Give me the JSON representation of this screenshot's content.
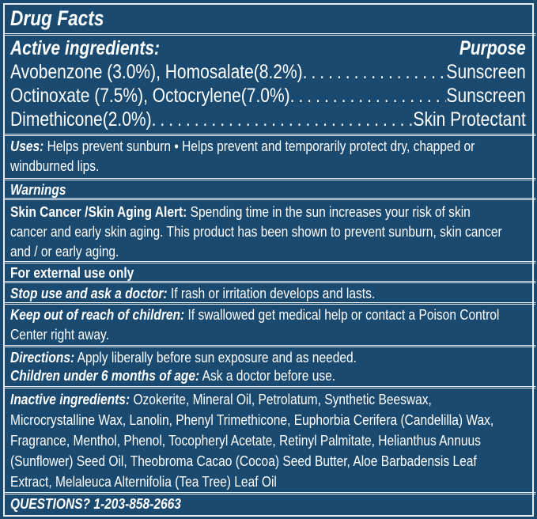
{
  "title": "Drug Facts",
  "active": {
    "heading": "Active ingredients:",
    "purpose_heading": "Purpose",
    "rows": [
      {
        "ingredient": "Avobenzone (3.0%), Homosalate(8.2%)",
        "purpose": "Sunscreen"
      },
      {
        "ingredient": "Octinoxate (7.5%), Octocrylene(7.0%)",
        "purpose": "Sunscreen"
      },
      {
        "ingredient": "Dimethicone(2.0%)",
        "purpose": "Skin Protectant"
      }
    ]
  },
  "uses": {
    "label": "Uses:",
    "lines": [
      " Helps prevent sunburn • Helps prevent and temporarily protect dry, chapped or",
      "windburned lips."
    ]
  },
  "warnings": {
    "heading": "Warnings",
    "skin_label": "Skin Cancer /Skin Aging Alert:",
    "skin_lines": [
      " Spending time in the sun increases your risk of skin",
      "cancer and early skin aging. This product has been shown to prevent sunburn, skin cancer",
      "and / or early aging."
    ],
    "external": "For external use only",
    "stop_label": "Stop use and ask a doctor:",
    "stop_text": " If rash or irritation develops and lasts.",
    "keep_label": "Keep out of reach of children:",
    "keep_lines": [
      " If swallowed get medical help or contact a Poison Control",
      "Center right away."
    ]
  },
  "directions": {
    "label": "Directions:",
    "text": " Apply liberally before sun exposure and as needed.",
    "children_label": "Children under 6 months of age:",
    "children_text": " Ask a doctor before use."
  },
  "inactive": {
    "label": "Inactive ingredients:",
    "lines": [
      " Ozokerite, Mineral Oil, Petrolatum, Synthetic Beeswax,",
      "Microcrystalline Wax, Lanolin, Phenyl Trimethicone, Euphorbia Cerifera (Candelilla) Wax,",
      "Fragrance, Menthol, Phenol, Tocopheryl Acetate, Retinyl Palmitate, Helianthus Annuus",
      "(Sunflower) Seed Oil, Theobroma Cacao (Cocoa) Seed Butter, Aloe Barbadensis Leaf",
      "Extract, Melaleuca Alternifolia (Tea Tree) Leaf Oil"
    ]
  },
  "questions": "QUESTIONS? 1-203-858-2663",
  "colors": {
    "background": "#1b4a70",
    "text": "#ffffff"
  }
}
